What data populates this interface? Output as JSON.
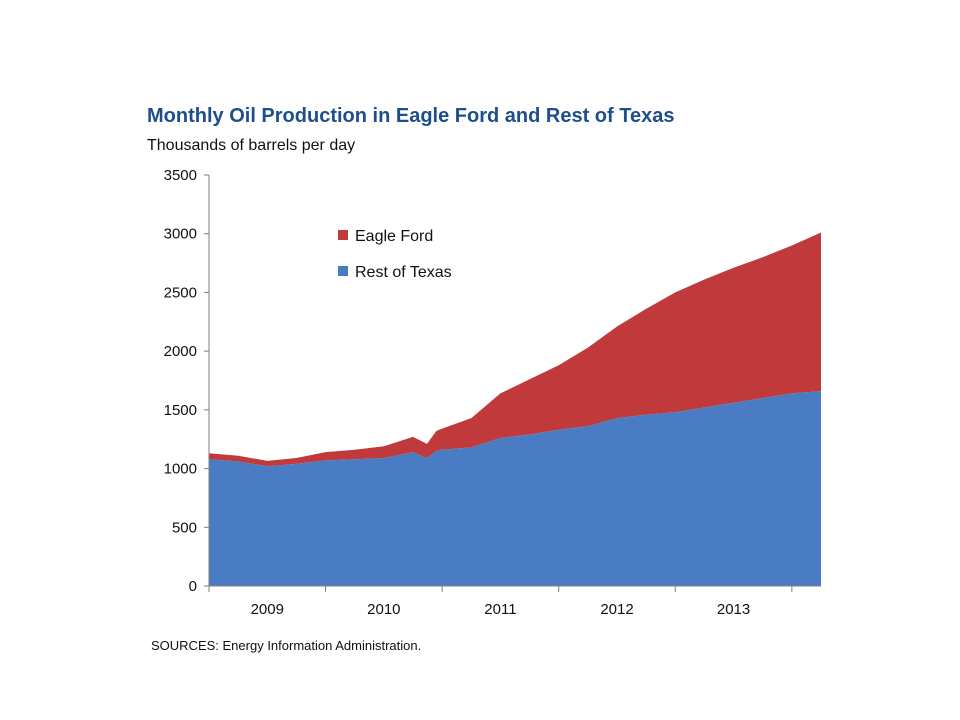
{
  "chart_data": {
    "type": "area",
    "stacked": true,
    "title": "Monthly Oil Production in Eagle Ford and Rest of Texas",
    "subtitle": "Thousands of barrels per day",
    "source": "SOURCES: Energy Information Administration.",
    "xlabel": "",
    "ylabel": "",
    "ylim": [
      0,
      3500
    ],
    "yticks": [
      0,
      500,
      1000,
      1500,
      2000,
      2500,
      3000,
      3500
    ],
    "xtick_labels": [
      "2009",
      "2010",
      "2011",
      "2012",
      "2013"
    ],
    "x_range": [
      2008.75,
      2014.0
    ],
    "grid": false,
    "legend_position": "top-left",
    "series": [
      {
        "name": "Rest of Texas",
        "color": "#4a7cc4",
        "points": [
          [
            2008.75,
            1080
          ],
          [
            2009.0,
            1060
          ],
          [
            2009.25,
            1020
          ],
          [
            2009.5,
            1040
          ],
          [
            2009.75,
            1070
          ],
          [
            2010.0,
            1080
          ],
          [
            2010.25,
            1090
          ],
          [
            2010.5,
            1140
          ],
          [
            2010.62,
            1090
          ],
          [
            2010.7,
            1150
          ],
          [
            2010.75,
            1160
          ],
          [
            2011.0,
            1180
          ],
          [
            2011.25,
            1260
          ],
          [
            2011.5,
            1290
          ],
          [
            2011.75,
            1330
          ],
          [
            2012.0,
            1360
          ],
          [
            2012.25,
            1430
          ],
          [
            2012.5,
            1460
          ],
          [
            2012.75,
            1480
          ],
          [
            2013.0,
            1520
          ],
          [
            2013.25,
            1560
          ],
          [
            2013.5,
            1600
          ],
          [
            2013.75,
            1640
          ],
          [
            2014.0,
            1660
          ]
        ]
      },
      {
        "name": "Eagle Ford",
        "color": "#c0393b",
        "points": [
          [
            2008.75,
            50
          ],
          [
            2009.0,
            50
          ],
          [
            2009.25,
            45
          ],
          [
            2009.5,
            50
          ],
          [
            2009.75,
            70
          ],
          [
            2010.0,
            80
          ],
          [
            2010.25,
            100
          ],
          [
            2010.5,
            130
          ],
          [
            2010.62,
            120
          ],
          [
            2010.7,
            170
          ],
          [
            2010.75,
            180
          ],
          [
            2011.0,
            250
          ],
          [
            2011.25,
            380
          ],
          [
            2011.5,
            470
          ],
          [
            2011.75,
            550
          ],
          [
            2012.0,
            670
          ],
          [
            2012.25,
            780
          ],
          [
            2012.5,
            900
          ],
          [
            2012.75,
            1020
          ],
          [
            2013.0,
            1090
          ],
          [
            2013.25,
            1150
          ],
          [
            2013.5,
            1200
          ],
          [
            2013.75,
            1260
          ],
          [
            2014.0,
            1350
          ]
        ]
      }
    ]
  }
}
